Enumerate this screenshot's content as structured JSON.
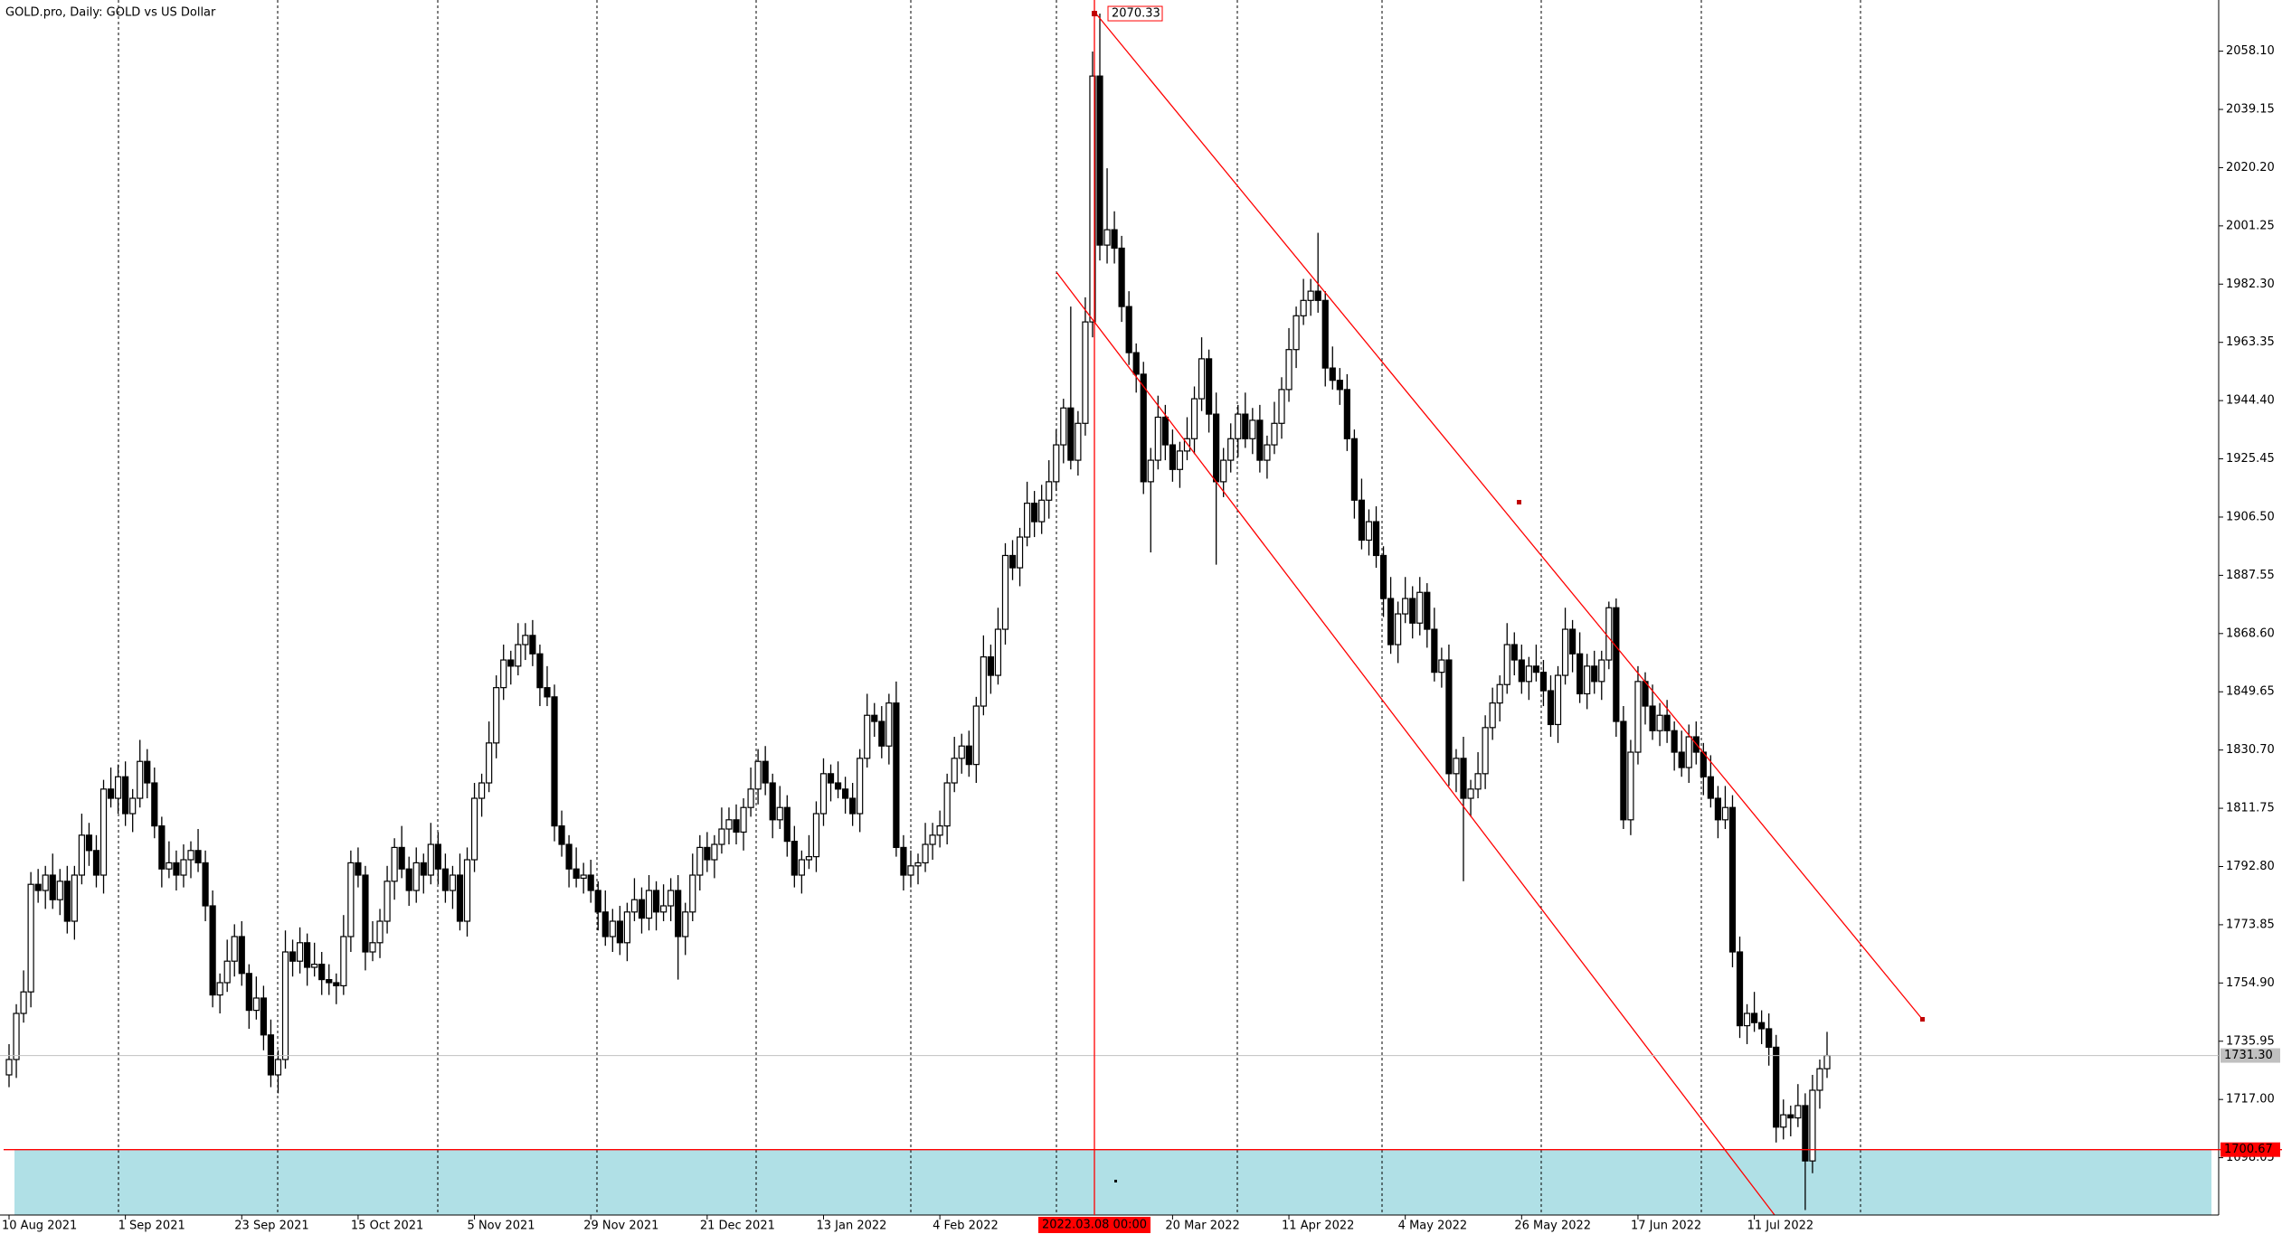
{
  "chart_data": {
    "type": "candlestick",
    "title": "GOLD.pro, Daily:  GOLD vs US Dollar",
    "ylim": [
      1679.4,
      2074.75
    ],
    "yticks": [
      {
        "value": 1698.05,
        "label": "1698.05"
      },
      {
        "value": 1717,
        "label": "1717.00"
      },
      {
        "value": 1735.95,
        "label": "1735.95"
      },
      {
        "value": 1754.9,
        "label": "1754.90"
      },
      {
        "value": 1773.85,
        "label": "1773.85"
      },
      {
        "value": 1792.8,
        "label": "1792.80"
      },
      {
        "value": 1811.75,
        "label": "1811.75"
      },
      {
        "value": 1830.7,
        "label": "1830.70"
      },
      {
        "value": 1849.65,
        "label": "1849.65"
      },
      {
        "value": 1868.6,
        "label": "1868.60"
      },
      {
        "value": 1887.55,
        "label": "1887.55"
      },
      {
        "value": 1906.5,
        "label": "1906.50"
      },
      {
        "value": 1925.45,
        "label": "1925.45"
      },
      {
        "value": 1944.4,
        "label": "1944.40"
      },
      {
        "value": 1963.35,
        "label": "1963.35"
      },
      {
        "value": 1982.3,
        "label": "1982.30"
      },
      {
        "value": 2001.25,
        "label": "2001.25"
      },
      {
        "value": 2020.2,
        "label": "2020.20"
      },
      {
        "value": 2039.15,
        "label": "2039.15"
      },
      {
        "value": 2058.1,
        "label": "2058.10"
      }
    ],
    "grid": false,
    "color_up": "#ffffff",
    "color_down": "#000000",
    "categories": [
      "10 Aug 2021",
      null,
      null,
      null,
      null,
      null,
      null,
      null,
      null,
      null,
      null,
      null,
      null,
      null,
      null,
      null,
      "1 Sep 2021",
      null,
      null,
      null,
      null,
      null,
      null,
      null,
      null,
      null,
      null,
      null,
      null,
      null,
      null,
      null,
      "23 Sep 2021",
      null,
      null,
      null,
      null,
      null,
      null,
      null,
      null,
      null,
      null,
      null,
      null,
      null,
      null,
      null,
      "15 Oct 2021",
      null,
      null,
      null,
      null,
      null,
      null,
      null,
      null,
      null,
      null,
      null,
      null,
      null,
      null,
      null,
      "5 Nov 2021",
      null,
      null,
      null,
      null,
      null,
      null,
      null,
      null,
      null,
      null,
      null,
      null,
      null,
      null,
      null,
      "29 Nov 2021",
      null,
      null,
      null,
      null,
      null,
      null,
      null,
      null,
      null,
      null,
      null,
      null,
      null,
      null,
      null,
      "21 Dec 2021",
      null,
      null,
      null,
      null,
      null,
      null,
      null,
      null,
      null,
      null,
      null,
      null,
      null,
      null,
      null,
      "13 Jan 2022",
      null,
      null,
      null,
      null,
      null,
      null,
      null,
      null,
      null,
      null,
      null,
      null,
      null,
      null,
      null,
      "4 Feb 2022",
      null,
      null,
      null,
      null,
      null,
      null,
      null,
      null,
      null,
      null,
      null,
      null,
      null,
      null,
      null,
      null,
      null,
      null,
      null,
      null,
      null,
      null,
      null,
      null,
      null,
      null,
      null,
      null,
      null,
      null,
      null,
      "20 Mar 2022",
      null,
      null,
      null,
      null,
      null,
      null,
      null,
      null,
      null,
      null,
      null,
      null,
      null,
      null,
      null,
      "11 Apr 2022",
      null,
      null,
      null,
      null,
      null,
      null,
      null,
      null,
      null,
      null,
      null,
      null,
      null,
      null,
      null,
      "4 May 2022",
      null,
      null,
      null,
      null,
      null,
      null,
      null,
      null,
      null,
      null,
      null,
      null,
      null,
      null,
      null,
      "26 May 2022",
      null,
      null,
      null,
      null,
      null,
      null,
      null,
      null,
      null,
      null,
      null,
      null,
      null,
      null,
      null,
      "17 Jun 2022",
      null,
      null,
      null,
      null,
      null,
      null,
      null,
      null,
      null,
      null,
      null,
      null,
      null,
      null,
      null,
      "11 Jul 2022",
      null,
      null,
      null,
      null,
      null,
      null,
      null,
      null,
      null,
      null
    ],
    "open": [
      1725,
      1730,
      1745,
      1752,
      1787,
      1785,
      1790,
      1782,
      1788,
      1775,
      1790,
      1803,
      1798,
      1790,
      1818,
      1815,
      1822,
      1810,
      1815,
      1827,
      1820,
      1806,
      1792,
      1794,
      1790,
      1795,
      1798,
      1794,
      1780,
      1751,
      1755,
      1762,
      1770,
      1758,
      1746,
      1750,
      1738,
      1725,
      1730,
      1765,
      1762,
      1768,
      1760,
      1761,
      1756,
      1755,
      1754,
      1770,
      1794,
      1790,
      1765,
      1768,
      1775,
      1788,
      1799,
      1792,
      1785,
      1794,
      1790,
      1800,
      1792,
      1785,
      1790,
      1775,
      1795,
      1815,
      1820,
      1833,
      1851,
      1860,
      1858,
      1865,
      1868,
      1862,
      1851,
      1848,
      1806,
      1800,
      1792,
      1789,
      1790,
      1785,
      1778,
      1770,
      1775,
      1768,
      1778,
      1782,
      1776,
      1785,
      1778,
      1780,
      1785,
      1770,
      1778,
      1790,
      1799,
      1795,
      1800,
      1805,
      1808,
      1804,
      1812,
      1818,
      1827,
      1820,
      1808,
      1812,
      1801,
      1790,
      1795,
      1796,
      1810,
      1823,
      1820,
      1818,
      1815,
      1810,
      1828,
      1842,
      1840,
      1832,
      1846,
      1799,
      1790,
      1793,
      1794,
      1800,
      1803,
      1806,
      1820,
      1828,
      1832,
      1826,
      1845,
      1861,
      1855,
      1870,
      1894,
      1890,
      1900,
      1911,
      1905,
      1912,
      1918,
      1930,
      1942,
      1925,
      1937,
      1970,
      2050,
      1995,
      2000,
      1994,
      1975,
      1960,
      1953,
      1918,
      1925,
      1939,
      1930,
      1922,
      1928,
      1932,
      1945,
      1958,
      1940,
      1918,
      1925,
      1932,
      1940,
      1932,
      1938,
      1925,
      1930,
      1937,
      1948,
      1961,
      1972,
      1977,
      1980,
      1977,
      1955,
      1951,
      1948,
      1932,
      1912,
      1899,
      1905,
      1894,
      1880,
      1865,
      1875,
      1880,
      1872,
      1882,
      1870,
      1856,
      1860,
      1823,
      1828,
      1815,
      1818,
      1823,
      1838,
      1846,
      1852,
      1865,
      1860,
      1853,
      1858,
      1856,
      1850,
      1839,
      1855,
      1870,
      1862,
      1849,
      1858,
      1853,
      1860,
      1877,
      1840,
      1808,
      1830,
      1853,
      1845,
      1837,
      1842,
      1837,
      1830,
      1825,
      1835,
      1830,
      1822,
      1815,
      1808,
      1812,
      1765,
      1741,
      1745,
      1742,
      1740,
      1734,
      1708,
      1712,
      1711,
      1715,
      1697,
      1720,
      1727
    ],
    "high": [
      1735,
      1748,
      1759,
      1791,
      1792,
      1793,
      1797,
      1792,
      1793,
      1793,
      1810,
      1807,
      1803,
      1821,
      1825,
      1826,
      1827,
      1818,
      1834,
      1831,
      1825,
      1809,
      1801,
      1798,
      1800,
      1801,
      1805,
      1798,
      1785,
      1758,
      1769,
      1774,
      1775,
      1761,
      1757,
      1754,
      1743,
      1733,
      1772,
      1769,
      1773,
      1771,
      1768,
      1765,
      1761,
      1758,
      1777,
      1798,
      1799,
      1793,
      1775,
      1779,
      1793,
      1802,
      1806,
      1796,
      1799,
      1797,
      1807,
      1804,
      1797,
      1793,
      1797,
      1799,
      1820,
      1823,
      1840,
      1855,
      1865,
      1863,
      1872,
      1872,
      1873,
      1865,
      1858,
      1852,
      1811,
      1803,
      1799,
      1794,
      1795,
      1788,
      1785,
      1779,
      1780,
      1781,
      1789,
      1786,
      1790,
      1788,
      1787,
      1789,
      1790,
      1781,
      1797,
      1803,
      1804,
      1803,
      1812,
      1812,
      1813,
      1815,
      1825,
      1831,
      1832,
      1823,
      1819,
      1816,
      1806,
      1798,
      1803,
      1814,
      1828,
      1826,
      1827,
      1822,
      1820,
      1831,
      1849,
      1846,
      1845,
      1849,
      1853,
      1803,
      1798,
      1797,
      1807,
      1807,
      1811,
      1823,
      1835,
      1836,
      1837,
      1848,
      1868,
      1865,
      1877,
      1898,
      1899,
      1903,
      1918,
      1915,
      1917,
      1925,
      1935,
      1945,
      1975,
      1941,
      1978,
      2058,
      2070.33,
      2020,
      2006,
      1998,
      1980,
      1963,
      1957,
      1929,
      1946,
      1943,
      1935,
      1931,
      1939,
      1949,
      1965,
      1961,
      1947,
      1929,
      1937,
      1943,
      1947,
      1942,
      1943,
      1933,
      1944,
      1952,
      1968,
      1975,
      1984,
      1984,
      1999,
      1980,
      1962,
      1955,
      1953,
      1935,
      1919,
      1909,
      1910,
      1897,
      1887,
      1879,
      1887,
      1884,
      1887,
      1885,
      1877,
      1864,
      1865,
      1831,
      1835,
      1821,
      1830,
      1842,
      1851,
      1855,
      1872,
      1869,
      1865,
      1861,
      1865,
      1860,
      1855,
      1858,
      1877,
      1873,
      1869,
      1862,
      1863,
      1863,
      1879,
      1880,
      1845,
      1834,
      1858,
      1856,
      1852,
      1846,
      1847,
      1840,
      1837,
      1839,
      1840,
      1833,
      1829,
      1819,
      1819,
      1816,
      1770,
      1748,
      1752,
      1746,
      1745,
      1738,
      1717,
      1715,
      1722,
      1719,
      1725,
      1730,
      1739
    ],
    "low": [
      1721,
      1724,
      1742,
      1747,
      1781,
      1779,
      1779,
      1777,
      1771,
      1769,
      1787,
      1793,
      1786,
      1784,
      1812,
      1810,
      1806,
      1804,
      1812,
      1815,
      1802,
      1786,
      1789,
      1785,
      1786,
      1789,
      1791,
      1775,
      1747,
      1745,
      1752,
      1757,
      1754,
      1740,
      1743,
      1733,
      1721,
      1719,
      1727,
      1757,
      1758,
      1754,
      1757,
      1751,
      1751,
      1748,
      1751,
      1765,
      1786,
      1759,
      1762,
      1763,
      1771,
      1782,
      1789,
      1780,
      1781,
      1784,
      1787,
      1787,
      1781,
      1779,
      1772,
      1770,
      1791,
      1809,
      1817,
      1828,
      1847,
      1852,
      1855,
      1860,
      1858,
      1845,
      1845,
      1801,
      1796,
      1786,
      1786,
      1784,
      1781,
      1772,
      1767,
      1765,
      1764,
      1762,
      1775,
      1771,
      1772,
      1772,
      1775,
      1775,
      1756,
      1764,
      1775,
      1785,
      1791,
      1789,
      1797,
      1800,
      1800,
      1798,
      1809,
      1813,
      1816,
      1802,
      1805,
      1796,
      1786,
      1784,
      1792,
      1791,
      1806,
      1814,
      1815,
      1810,
      1806,
      1804,
      1825,
      1835,
      1828,
      1826,
      1796,
      1785,
      1786,
      1787,
      1791,
      1795,
      1799,
      1800,
      1817,
      1823,
      1822,
      1820,
      1842,
      1849,
      1852,
      1865,
      1886,
      1884,
      1897,
      1900,
      1901,
      1906,
      1915,
      1924,
      1922,
      1920,
      1933,
      1965,
      1990,
      1989,
      1989,
      1970,
      1956,
      1947,
      1914,
      1895,
      1922,
      1925,
      1918,
      1916,
      1925,
      1927,
      1941,
      1934,
      1891,
      1913,
      1921,
      1926,
      1929,
      1927,
      1921,
      1919,
      1927,
      1932,
      1944,
      1955,
      1969,
      1972,
      1973,
      1949,
      1948,
      1943,
      1928,
      1906,
      1896,
      1894,
      1890,
      1874,
      1862,
      1859,
      1872,
      1867,
      1868,
      1864,
      1853,
      1851,
      1819,
      1817,
      1788,
      1809,
      1815,
      1818,
      1834,
      1840,
      1849,
      1855,
      1849,
      1847,
      1853,
      1845,
      1835,
      1833,
      1852,
      1856,
      1846,
      1844,
      1849,
      1847,
      1857,
      1835,
      1805,
      1803,
      1826,
      1839,
      1834,
      1832,
      1833,
      1824,
      1822,
      1820,
      1826,
      1816,
      1812,
      1802,
      1805,
      1760,
      1737,
      1735,
      1739,
      1735,
      1728,
      1703,
      1704,
      1705,
      1708,
      1681,
      1693,
      1714,
      1724
    ],
    "close": [
      1730,
      1745,
      1752,
      1787,
      1785,
      1790,
      1782,
      1788,
      1775,
      1790,
      1803,
      1798,
      1790,
      1818,
      1815,
      1822,
      1810,
      1815,
      1827,
      1820,
      1806,
      1792,
      1794,
      1790,
      1795,
      1798,
      1794,
      1780,
      1751,
      1755,
      1762,
      1770,
      1758,
      1746,
      1750,
      1738,
      1725,
      1730,
      1765,
      1762,
      1768,
      1760,
      1761,
      1756,
      1755,
      1754,
      1770,
      1794,
      1790,
      1765,
      1768,
      1775,
      1788,
      1799,
      1792,
      1785,
      1794,
      1790,
      1800,
      1792,
      1785,
      1790,
      1775,
      1795,
      1815,
      1820,
      1833,
      1851,
      1860,
      1858,
      1865,
      1868,
      1862,
      1851,
      1848,
      1806,
      1800,
      1792,
      1789,
      1790,
      1785,
      1778,
      1770,
      1775,
      1768,
      1778,
      1782,
      1776,
      1785,
      1778,
      1780,
      1785,
      1770,
      1778,
      1790,
      1799,
      1795,
      1800,
      1805,
      1808,
      1804,
      1812,
      1818,
      1827,
      1820,
      1808,
      1812,
      1801,
      1790,
      1795,
      1796,
      1810,
      1823,
      1820,
      1818,
      1815,
      1810,
      1828,
      1842,
      1840,
      1832,
      1846,
      1799,
      1790,
      1793,
      1794,
      1800,
      1803,
      1806,
      1820,
      1828,
      1832,
      1826,
      1845,
      1861,
      1855,
      1870,
      1894,
      1890,
      1900,
      1911,
      1905,
      1912,
      1918,
      1930,
      1942,
      1925,
      1937,
      1970,
      2050,
      1995,
      2000,
      1994,
      1975,
      1960,
      1953,
      1918,
      1925,
      1939,
      1930,
      1922,
      1928,
      1932,
      1945,
      1958,
      1940,
      1918,
      1925,
      1932,
      1940,
      1932,
      1938,
      1925,
      1930,
      1937,
      1948,
      1961,
      1972,
      1977,
      1980,
      1977,
      1955,
      1951,
      1948,
      1932,
      1912,
      1899,
      1905,
      1894,
      1880,
      1865,
      1875,
      1880,
      1872,
      1882,
      1870,
      1856,
      1860,
      1823,
      1828,
      1815,
      1818,
      1823,
      1838,
      1846,
      1852,
      1865,
      1860,
      1853,
      1858,
      1856,
      1850,
      1839,
      1855,
      1870,
      1862,
      1849,
      1858,
      1853,
      1860,
      1877,
      1840,
      1808,
      1830,
      1853,
      1845,
      1837,
      1842,
      1837,
      1830,
      1825,
      1835,
      1830,
      1822,
      1815,
      1808,
      1812,
      1765,
      1741,
      1745,
      1742,
      1740,
      1734,
      1708,
      1712,
      1711,
      1715,
      1697,
      1720,
      1727,
      1731.3
    ],
    "current_price": {
      "value": 1731.3,
      "label": "1731.30"
    },
    "level": {
      "value": 1700.67,
      "label": "1700.67",
      "color": "#ff0000"
    },
    "crosshair": {
      "price": {
        "value": 2070.33,
        "label": "2070.33"
      },
      "time": "2022.03.08 00:00",
      "color": "#ff0000"
    }
  }
}
